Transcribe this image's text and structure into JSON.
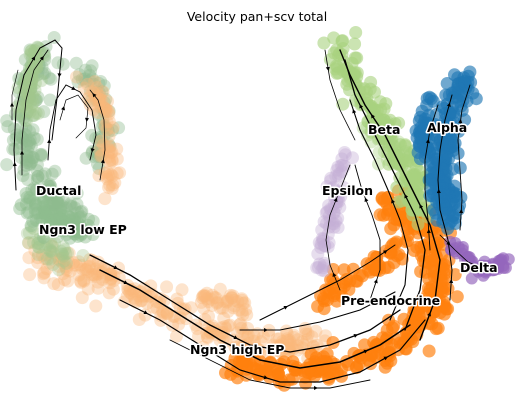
{
  "chart_data": {
    "type": "scatter",
    "title": "Velocity pan+scv total",
    "legend": "on data",
    "grid": false,
    "axes_visible": false,
    "series": [
      {
        "name": "Ductal",
        "color": "#8fbc8f"
      },
      {
        "name": "Ngn3 low EP",
        "color": "#a3c68d"
      },
      {
        "name": "Ngn3 high EP",
        "color": "#f9b77a"
      },
      {
        "name": "Pre-endocrine",
        "color": "#ff7f0e"
      },
      {
        "name": "Beta",
        "color": "#a8d27f"
      },
      {
        "name": "Alpha",
        "color": "#1f77b4"
      },
      {
        "name": "Delta",
        "color": "#9467bd"
      },
      {
        "name": "Epsilon",
        "color": "#c5b0d5"
      }
    ],
    "labels": [
      "Ductal",
      "Ngn3 low EP",
      "Ngn3 high EP",
      "Pre-endocrine",
      "Beta",
      "Alpha",
      "Delta",
      "Epsilon"
    ]
  },
  "colors": {
    "background": "#ffffff",
    "streamline": "#000000"
  }
}
